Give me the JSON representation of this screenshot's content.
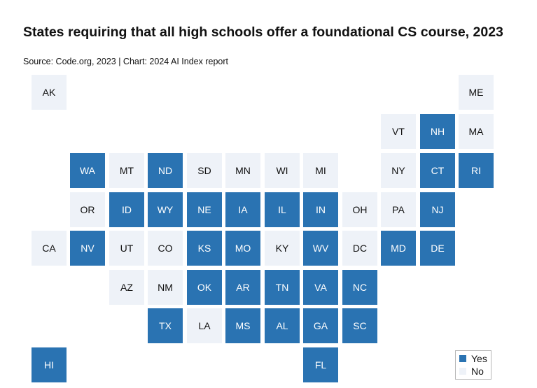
{
  "title": "States requiring that all high schools offer a foundational CS course, 2023",
  "subtitle": "Source: Code.org, 2023 | Chart: 2024 AI Index report",
  "colors": {
    "yes": "#2a73b2",
    "no": "#eef2f8",
    "yes_text": "#ffffff",
    "no_text": "#111111"
  },
  "legend": {
    "yes_label": "Yes",
    "no_label": "No"
  },
  "chart_data": {
    "type": "heatmap",
    "categories": [
      "Yes",
      "No"
    ],
    "states": [
      {
        "code": "AK",
        "value": "No"
      },
      {
        "code": "ME",
        "value": "No"
      },
      {
        "code": "VT",
        "value": "No"
      },
      {
        "code": "NH",
        "value": "Yes"
      },
      {
        "code": "MA",
        "value": "No"
      },
      {
        "code": "WA",
        "value": "Yes"
      },
      {
        "code": "MT",
        "value": "No"
      },
      {
        "code": "ND",
        "value": "Yes"
      },
      {
        "code": "SD",
        "value": "No"
      },
      {
        "code": "MN",
        "value": "No"
      },
      {
        "code": "WI",
        "value": "No"
      },
      {
        "code": "MI",
        "value": "No"
      },
      {
        "code": "NY",
        "value": "No"
      },
      {
        "code": "CT",
        "value": "Yes"
      },
      {
        "code": "RI",
        "value": "Yes"
      },
      {
        "code": "OR",
        "value": "No"
      },
      {
        "code": "ID",
        "value": "Yes"
      },
      {
        "code": "WY",
        "value": "Yes"
      },
      {
        "code": "NE",
        "value": "Yes"
      },
      {
        "code": "IA",
        "value": "Yes"
      },
      {
        "code": "IL",
        "value": "Yes"
      },
      {
        "code": "IN",
        "value": "Yes"
      },
      {
        "code": "OH",
        "value": "No"
      },
      {
        "code": "PA",
        "value": "No"
      },
      {
        "code": "NJ",
        "value": "Yes"
      },
      {
        "code": "CA",
        "value": "No"
      },
      {
        "code": "NV",
        "value": "Yes"
      },
      {
        "code": "UT",
        "value": "No"
      },
      {
        "code": "CO",
        "value": "No"
      },
      {
        "code": "KS",
        "value": "Yes"
      },
      {
        "code": "MO",
        "value": "Yes"
      },
      {
        "code": "KY",
        "value": "No"
      },
      {
        "code": "WV",
        "value": "Yes"
      },
      {
        "code": "DC",
        "value": "No"
      },
      {
        "code": "MD",
        "value": "Yes"
      },
      {
        "code": "DE",
        "value": "Yes"
      },
      {
        "code": "AZ",
        "value": "No"
      },
      {
        "code": "NM",
        "value": "No"
      },
      {
        "code": "OK",
        "value": "Yes"
      },
      {
        "code": "AR",
        "value": "Yes"
      },
      {
        "code": "TN",
        "value": "Yes"
      },
      {
        "code": "VA",
        "value": "Yes"
      },
      {
        "code": "NC",
        "value": "Yes"
      },
      {
        "code": "TX",
        "value": "Yes"
      },
      {
        "code": "LA",
        "value": "No"
      },
      {
        "code": "MS",
        "value": "Yes"
      },
      {
        "code": "AL",
        "value": "Yes"
      },
      {
        "code": "GA",
        "value": "Yes"
      },
      {
        "code": "SC",
        "value": "Yes"
      },
      {
        "code": "HI",
        "value": "Yes"
      },
      {
        "code": "FL",
        "value": "Yes"
      }
    ],
    "legend_position": "bottom-right"
  }
}
